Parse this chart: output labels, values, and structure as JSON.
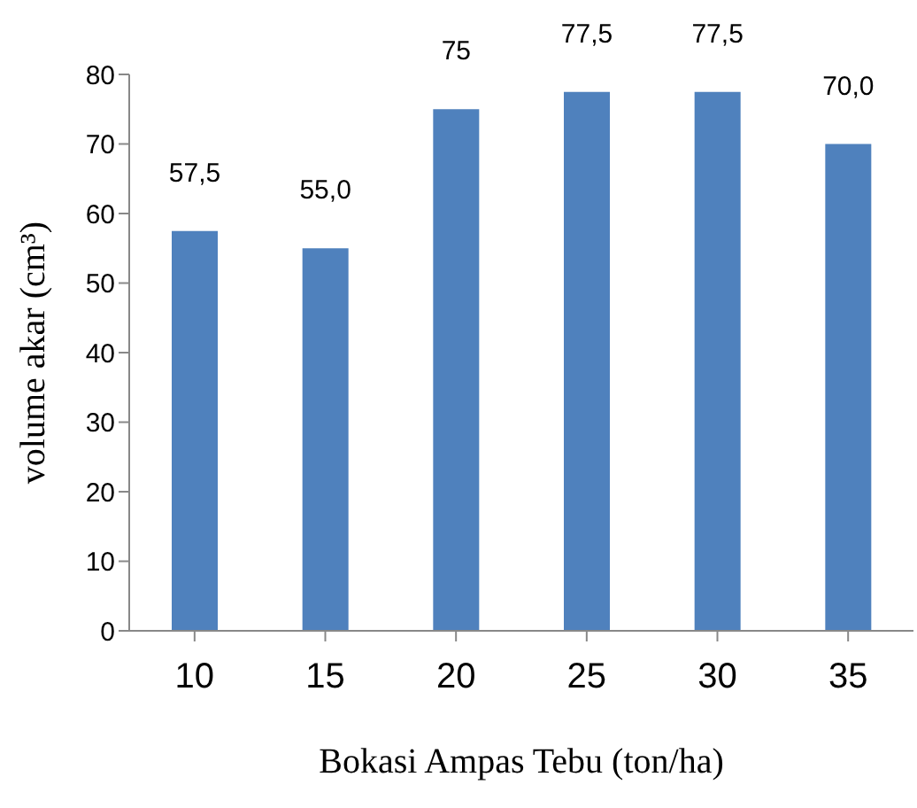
{
  "chart_data": {
    "type": "bar",
    "xlabel": "Bokasi Ampas Tebu (ton/ha)",
    "ylabel": "volume akar (cm³)",
    "categories": [
      "10",
      "15",
      "20",
      "25",
      "30",
      "35"
    ],
    "values": [
      57.5,
      55.0,
      75,
      77.5,
      77.5,
      70.0
    ],
    "value_labels": [
      "57,5",
      "55,0",
      "75",
      "77,5",
      "77,5",
      "70,0"
    ],
    "color": "#4f81bd",
    "ylim": [
      0,
      80
    ],
    "yticks": [
      0,
      10,
      20,
      30,
      40,
      50,
      60,
      70,
      80
    ],
    "grid": false,
    "legend": false
  }
}
